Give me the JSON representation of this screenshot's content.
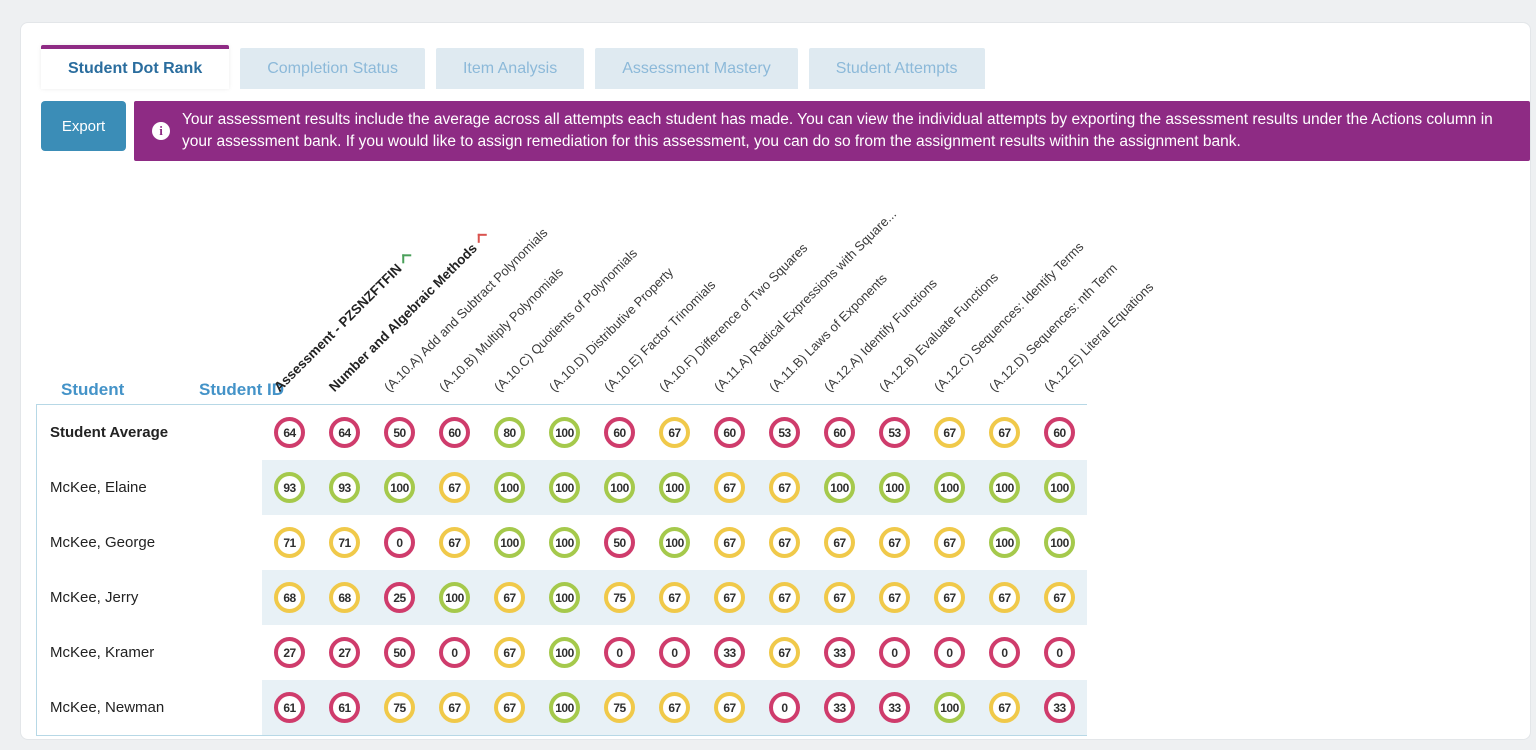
{
  "tabs": [
    {
      "label": "Student Dot Rank",
      "active": true
    },
    {
      "label": "Completion Status",
      "active": false
    },
    {
      "label": "Item Analysis",
      "active": false
    },
    {
      "label": "Assessment Mastery",
      "active": false
    },
    {
      "label": "Student Attempts",
      "active": false
    }
  ],
  "toolbar": {
    "export_label": "Export"
  },
  "banner": {
    "icon": "info-icon",
    "icon_glyph": "i",
    "text": "Your assessment results include the average across all attempts each student has made. You can view the individual attempts by exporting the assessment results under the Actions column in your assessment bank. If you would like to assign remediation for this assessment, you can do so from the assignment results within the assignment bank."
  },
  "matrix": {
    "student_header": "Student",
    "student_id_header": "Student ID",
    "columns": [
      {
        "label": "Assessment - PZSNZFTFIN",
        "bold": true,
        "marker_color": "#4aa05a"
      },
      {
        "label": "Number and Algebraic Methods",
        "bold": true,
        "marker_color": "#d9534f"
      },
      {
        "label": "(A.10.A) Add and Subtract Polynomials"
      },
      {
        "label": "(A.10.B) Multiply Polynomials"
      },
      {
        "label": "(A.10.C) Quotients of Polynomials"
      },
      {
        "label": "(A.10.D) Distributive Property"
      },
      {
        "label": "(A.10.E) Factor Trinomials"
      },
      {
        "label": "(A.10.F) Difference of Two Squares"
      },
      {
        "label": "(A.11.A) Radical Expressions with Square..."
      },
      {
        "label": "(A.11.B) Laws of Exponents"
      },
      {
        "label": "(A.12.A) Identify Functions"
      },
      {
        "label": "(A.12.B) Evaluate Functions"
      },
      {
        "label": "(A.12.C) Sequences: Identify Terms"
      },
      {
        "label": "(A.12.D) Sequences: nth Term"
      },
      {
        "label": "(A.12.E) Literal Equations"
      }
    ],
    "rows": [
      {
        "name": "Student Average",
        "bold": true,
        "striped": false,
        "scores": [
          64,
          64,
          50,
          60,
          80,
          100,
          60,
          67,
          60,
          53,
          60,
          53,
          67,
          67,
          60
        ]
      },
      {
        "name": "McKee, Elaine",
        "bold": false,
        "striped": true,
        "scores": [
          93,
          93,
          100,
          67,
          100,
          100,
          100,
          100,
          67,
          67,
          100,
          100,
          100,
          100,
          100
        ]
      },
      {
        "name": "McKee, George",
        "bold": false,
        "striped": false,
        "scores": [
          71,
          71,
          0,
          67,
          100,
          100,
          50,
          100,
          67,
          67,
          67,
          67,
          67,
          100,
          100
        ]
      },
      {
        "name": "McKee, Jerry",
        "bold": false,
        "striped": true,
        "scores": [
          68,
          68,
          25,
          100,
          67,
          100,
          75,
          67,
          67,
          67,
          67,
          67,
          67,
          67,
          67
        ]
      },
      {
        "name": "McKee, Kramer",
        "bold": false,
        "striped": false,
        "scores": [
          27,
          27,
          50,
          0,
          67,
          100,
          0,
          0,
          33,
          67,
          33,
          0,
          0,
          0,
          0
        ]
      },
      {
        "name": "McKee, Newman",
        "bold": false,
        "striped": true,
        "scores": [
          61,
          61,
          75,
          67,
          67,
          100,
          75,
          67,
          67,
          0,
          33,
          33,
          100,
          67,
          33
        ]
      }
    ],
    "score_levels": {
      "green_min": 80,
      "yellow_min": 67
    },
    "dot_colors": {
      "green": "#a5c94c",
      "yellow": "#f0c94a",
      "red": "#cf3c6c"
    }
  },
  "theme": {
    "accent_purple": "#8e2b84",
    "export_blue": "#3b8db7",
    "header_blue": "#4493c8",
    "stripe_blue": "#e8f1f6",
    "table_border": "#b7d8e6"
  }
}
